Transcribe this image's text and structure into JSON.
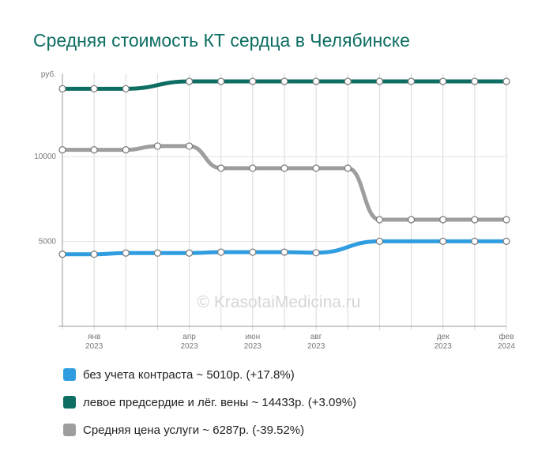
{
  "title": "Средняя стоимость КТ сердца в Челябинске",
  "watermark": "© KrasotaiMedicina.ru",
  "chart_data": {
    "type": "line",
    "ylabel": "руб.",
    "ylim": [
      0,
      14900
    ],
    "yticks": [
      5000,
      10000
    ],
    "grid": true,
    "x": [
      "2022-12",
      "2023-01",
      "2023-02",
      "2023-03",
      "2023-04",
      "2023-05",
      "2023-06",
      "2023-07",
      "2023-08",
      "2023-09",
      "2023-10",
      "2023-11",
      "2023-12",
      "2024-01",
      "2024-02"
    ],
    "x_tick_labels": [
      {
        "x": "2023-01",
        "month": "янв",
        "year": "2023"
      },
      {
        "x": "2023-04",
        "month": "апр",
        "year": "2023"
      },
      {
        "x": "2023-06",
        "month": "июн",
        "year": "2023"
      },
      {
        "x": "2023-08",
        "month": "авг",
        "year": "2023"
      },
      {
        "x": "2023-12",
        "month": "дек",
        "year": "2023"
      },
      {
        "x": "2024-02",
        "month": "фев",
        "year": "2024"
      }
    ],
    "series": [
      {
        "name": "без учета контраста",
        "legend": "без учета контраста ~ 5010р. (+17.8%)",
        "color": "#2f9de0",
        "x": [
          "2022-12",
          "2023-01",
          "2023-02",
          "2023-03",
          "2023-04",
          "2023-05",
          "2023-06",
          "2023-07",
          "2023-08",
          "2023-10",
          "2023-12",
          "2024-01",
          "2024-02"
        ],
        "values": [
          4250,
          4250,
          4320,
          4320,
          4320,
          4370,
          4370,
          4370,
          4340,
          5010,
          5010,
          5010,
          5010
        ]
      },
      {
        "name": "левое предсердие и лёг. вены",
        "legend": "левое предсердие и лёг. вены ~ 14433р. (+3.09%)",
        "color": "#0e6e63",
        "x": [
          "2022-12",
          "2023-01",
          "2023-02",
          "2023-04",
          "2023-05",
          "2023-06",
          "2023-07",
          "2023-08",
          "2023-09",
          "2023-10",
          "2023-11",
          "2023-12",
          "2024-01",
          "2024-02"
        ],
        "values": [
          14000,
          14000,
          14000,
          14433,
          14433,
          14433,
          14433,
          14433,
          14433,
          14433,
          14433,
          14433,
          14433,
          14433
        ]
      },
      {
        "name": "Средняя цена услуги",
        "legend": "Средняя цена услуги ~ 6287р. (-39.52%)",
        "color": "#9e9e9e",
        "x": [
          "2022-12",
          "2023-01",
          "2023-02",
          "2023-03",
          "2023-04",
          "2023-05",
          "2023-06",
          "2023-07",
          "2023-08",
          "2023-09",
          "2023-10",
          "2023-11",
          "2023-12",
          "2024-01",
          "2024-02"
        ],
        "values": [
          10400,
          10400,
          10400,
          10620,
          10620,
          9320,
          9320,
          9320,
          9320,
          9320,
          6287,
          6287,
          6287,
          6287,
          6287
        ]
      }
    ]
  }
}
